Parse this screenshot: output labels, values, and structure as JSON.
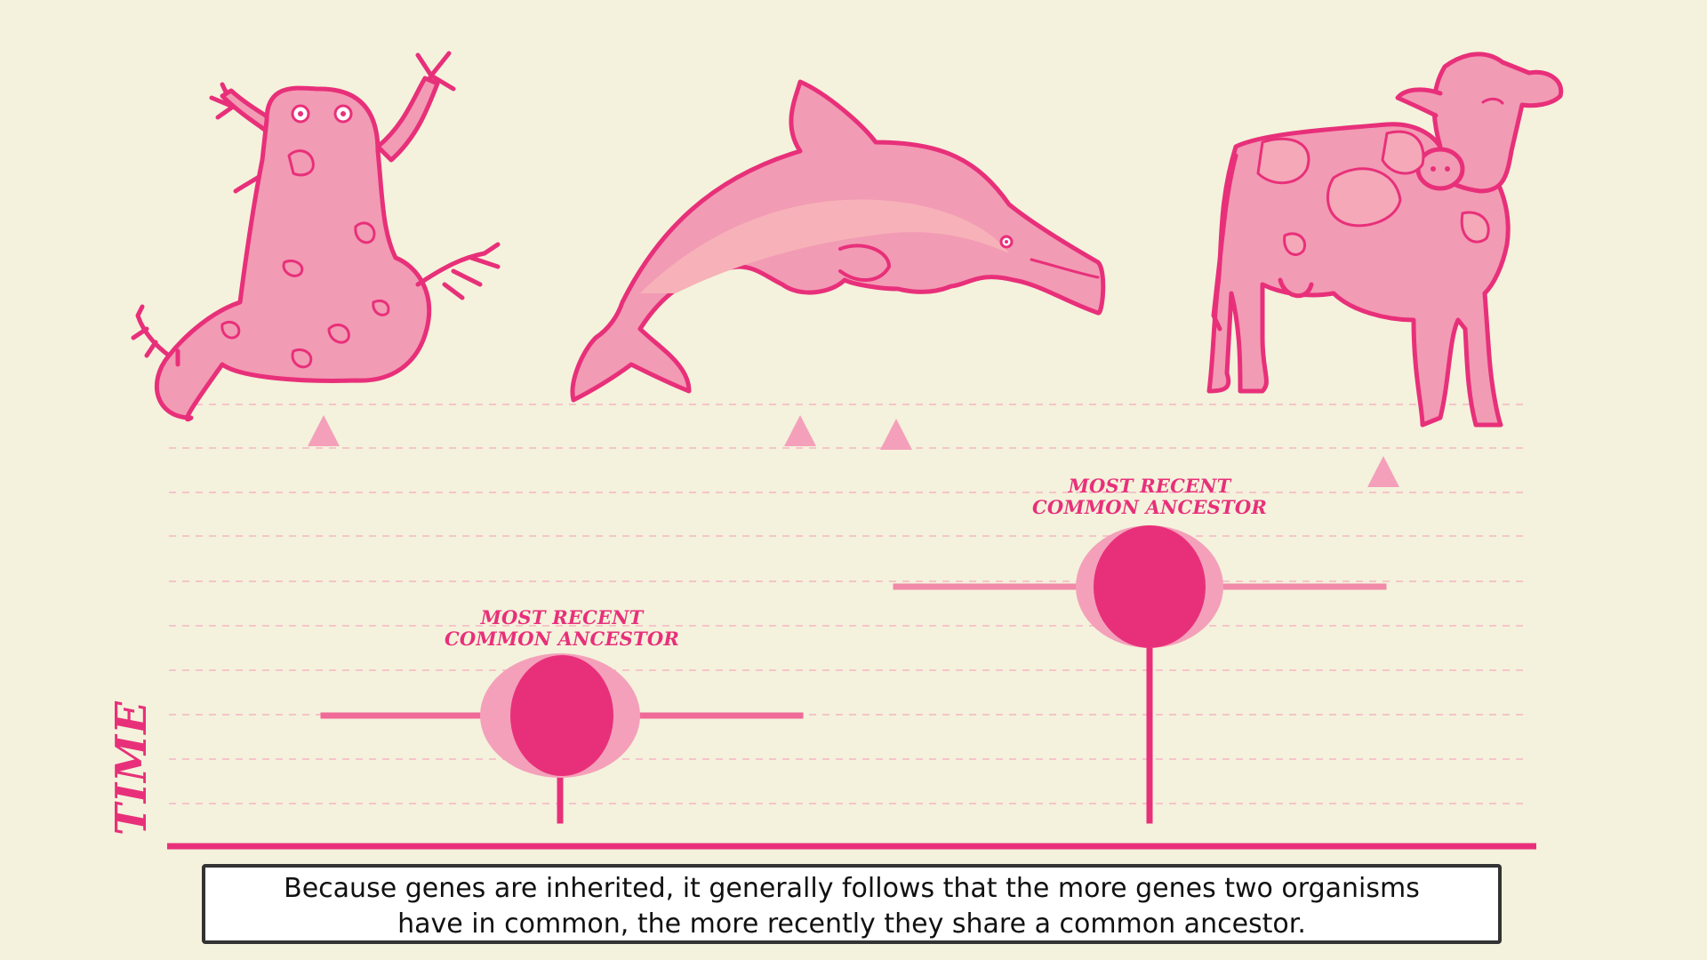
{
  "axis": {
    "label": "TIME"
  },
  "ancestors": [
    {
      "label_line1": "MOST RECENT",
      "label_line2": "COMMON ANCESTOR",
      "joins": [
        "dolphin",
        "cow"
      ]
    },
    {
      "label_line1": "MOST RECENT",
      "label_line2": "COMMON ANCESTOR",
      "joins": [
        "frog",
        "dolphin-cow"
      ]
    }
  ],
  "organisms": [
    {
      "name": "frog",
      "icon": "frog-icon"
    },
    {
      "name": "dolphin",
      "icon": "dolphin-icon"
    },
    {
      "name": "cow",
      "icon": "cow-icon"
    }
  ],
  "caption": {
    "line1": "Because genes are inherited, it generally follows that the more genes two organisms",
    "line2": "have in common, the more recently they share a common ancestor."
  },
  "colors": {
    "background": "#f4f2dc",
    "accent": "#e8307a",
    "branch": "#f08aa8",
    "animal_fill": "#f29bb4",
    "animal_stroke": "#e8307a",
    "node_halo": "#f4a0ba"
  }
}
